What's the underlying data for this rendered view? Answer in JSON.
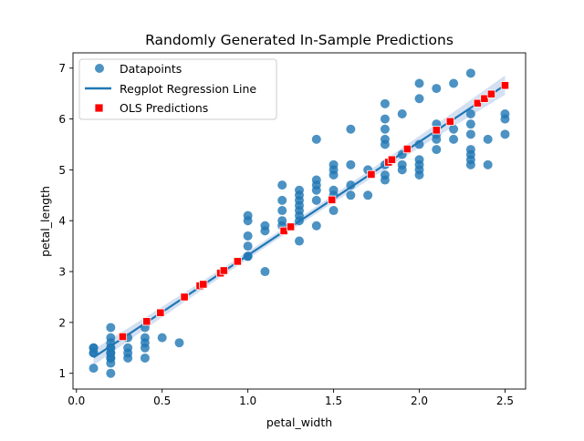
{
  "chart_data": {
    "type": "scatter",
    "title": "Randomly Generated In-Sample Predictions",
    "xlabel": "petal_width",
    "ylabel": "petal_length",
    "xlim": [
      -0.02,
      2.62
    ],
    "ylim": [
      0.69,
      7.3
    ],
    "xticks": [
      0.0,
      0.5,
      1.0,
      1.5,
      2.0,
      2.5
    ],
    "xtick_labels": [
      "0.0",
      "0.5",
      "1.0",
      "1.5",
      "2.0",
      "2.5"
    ],
    "yticks": [
      1,
      2,
      3,
      4,
      5,
      6,
      7
    ],
    "ytick_labels": [
      "1",
      "2",
      "3",
      "4",
      "5",
      "6",
      "7"
    ],
    "legend": {
      "location": "upper-left",
      "entries": [
        {
          "label": "Datapoints",
          "kind": "scatter-circle"
        },
        {
          "label": "Regplot Regression Line",
          "kind": "line"
        },
        {
          "label": "OLS Predictions",
          "kind": "square-marker"
        }
      ]
    },
    "colors": {
      "datapoints": "#1f77b4",
      "regression_line": "#1f77b4",
      "confidence_band": "#aec7e8",
      "predictions": "#ff0000",
      "prediction_edge": "#ffffff"
    },
    "series": [
      {
        "name": "Datapoints",
        "type": "scatter",
        "points": [
          [
            0.1,
            1.5
          ],
          [
            0.1,
            1.4
          ],
          [
            0.1,
            1.1
          ],
          [
            0.1,
            1.5
          ],
          [
            0.1,
            1.4
          ],
          [
            0.2,
            1.0
          ],
          [
            0.2,
            1.2
          ],
          [
            0.2,
            1.3
          ],
          [
            0.2,
            1.4
          ],
          [
            0.2,
            1.5
          ],
          [
            0.2,
            1.6
          ],
          [
            0.2,
            1.7
          ],
          [
            0.2,
            1.9
          ],
          [
            0.2,
            1.5
          ],
          [
            0.2,
            1.4
          ],
          [
            0.2,
            1.3
          ],
          [
            0.3,
            1.3
          ],
          [
            0.3,
            1.4
          ],
          [
            0.3,
            1.5
          ],
          [
            0.3,
            1.7
          ],
          [
            0.4,
            1.3
          ],
          [
            0.4,
            1.5
          ],
          [
            0.4,
            1.7
          ],
          [
            0.4,
            1.9
          ],
          [
            0.4,
            1.6
          ],
          [
            0.5,
            1.7
          ],
          [
            0.6,
            1.6
          ],
          [
            1.0,
            3.3
          ],
          [
            1.0,
            3.5
          ],
          [
            1.0,
            3.7
          ],
          [
            1.0,
            4.0
          ],
          [
            1.0,
            4.1
          ],
          [
            1.0,
            3.3
          ],
          [
            1.1,
            3.0
          ],
          [
            1.1,
            3.8
          ],
          [
            1.1,
            3.9
          ],
          [
            1.2,
            3.9
          ],
          [
            1.2,
            4.0
          ],
          [
            1.2,
            4.4
          ],
          [
            1.2,
            4.7
          ],
          [
            1.2,
            4.2
          ],
          [
            1.3,
            3.6
          ],
          [
            1.3,
            4.0
          ],
          [
            1.3,
            4.1
          ],
          [
            1.3,
            4.2
          ],
          [
            1.3,
            4.3
          ],
          [
            1.3,
            4.4
          ],
          [
            1.3,
            4.5
          ],
          [
            1.3,
            4.6
          ],
          [
            1.4,
            3.9
          ],
          [
            1.4,
            4.4
          ],
          [
            1.4,
            4.6
          ],
          [
            1.4,
            4.7
          ],
          [
            1.4,
            4.8
          ],
          [
            1.4,
            5.6
          ],
          [
            1.5,
            4.2
          ],
          [
            1.5,
            4.5
          ],
          [
            1.5,
            4.6
          ],
          [
            1.5,
            4.9
          ],
          [
            1.5,
            5.0
          ],
          [
            1.5,
            5.1
          ],
          [
            1.6,
            4.5
          ],
          [
            1.6,
            4.7
          ],
          [
            1.6,
            5.1
          ],
          [
            1.6,
            5.8
          ],
          [
            1.7,
            4.5
          ],
          [
            1.7,
            5.0
          ],
          [
            1.8,
            4.8
          ],
          [
            1.8,
            4.9
          ],
          [
            1.8,
            5.1
          ],
          [
            1.8,
            5.5
          ],
          [
            1.8,
            5.6
          ],
          [
            1.8,
            5.8
          ],
          [
            1.8,
            6.0
          ],
          [
            1.8,
            6.3
          ],
          [
            1.9,
            5.0
          ],
          [
            1.9,
            5.1
          ],
          [
            1.9,
            5.3
          ],
          [
            1.9,
            6.1
          ],
          [
            2.0,
            4.9
          ],
          [
            2.0,
            5.0
          ],
          [
            2.0,
            5.1
          ],
          [
            2.0,
            5.2
          ],
          [
            2.0,
            5.5
          ],
          [
            2.0,
            6.4
          ],
          [
            2.0,
            6.7
          ],
          [
            2.1,
            5.4
          ],
          [
            2.1,
            5.6
          ],
          [
            2.1,
            5.7
          ],
          [
            2.1,
            5.9
          ],
          [
            2.1,
            6.6
          ],
          [
            2.2,
            5.6
          ],
          [
            2.2,
            5.8
          ],
          [
            2.2,
            6.7
          ],
          [
            2.3,
            5.1
          ],
          [
            2.3,
            5.2
          ],
          [
            2.3,
            5.3
          ],
          [
            2.3,
            5.4
          ],
          [
            2.3,
            5.7
          ],
          [
            2.3,
            5.9
          ],
          [
            2.3,
            6.1
          ],
          [
            2.3,
            6.9
          ],
          [
            2.4,
            5.1
          ],
          [
            2.4,
            5.6
          ],
          [
            2.5,
            5.7
          ],
          [
            2.5,
            6.0
          ],
          [
            2.5,
            6.1
          ]
        ]
      },
      {
        "name": "Regplot Regression Line",
        "type": "line",
        "intercept": 1.09,
        "slope": 2.23,
        "x_range": [
          0.1,
          2.5
        ],
        "ci_halfwidth_at_ends": 0.19,
        "ci_halfwidth_at_center": 0.07,
        "ci_center_x": 1.2
      },
      {
        "name": "OLS Predictions",
        "type": "scatter",
        "points": [
          [
            0.27,
            1.72
          ],
          [
            0.41,
            2.02
          ],
          [
            0.49,
            2.19
          ],
          [
            0.63,
            2.5
          ],
          [
            0.72,
            2.72
          ],
          [
            0.74,
            2.75
          ],
          [
            0.84,
            2.97
          ],
          [
            0.86,
            3.02
          ],
          [
            0.94,
            3.2
          ],
          [
            1.21,
            3.8
          ],
          [
            1.25,
            3.88
          ],
          [
            1.49,
            4.41
          ],
          [
            1.72,
            4.91
          ],
          [
            1.82,
            5.15
          ],
          [
            1.84,
            5.2
          ],
          [
            1.93,
            5.41
          ],
          [
            2.1,
            5.78
          ],
          [
            2.18,
            5.95
          ],
          [
            2.34,
            6.31
          ],
          [
            2.38,
            6.4
          ],
          [
            2.42,
            6.49
          ],
          [
            2.5,
            6.66
          ]
        ]
      }
    ]
  }
}
